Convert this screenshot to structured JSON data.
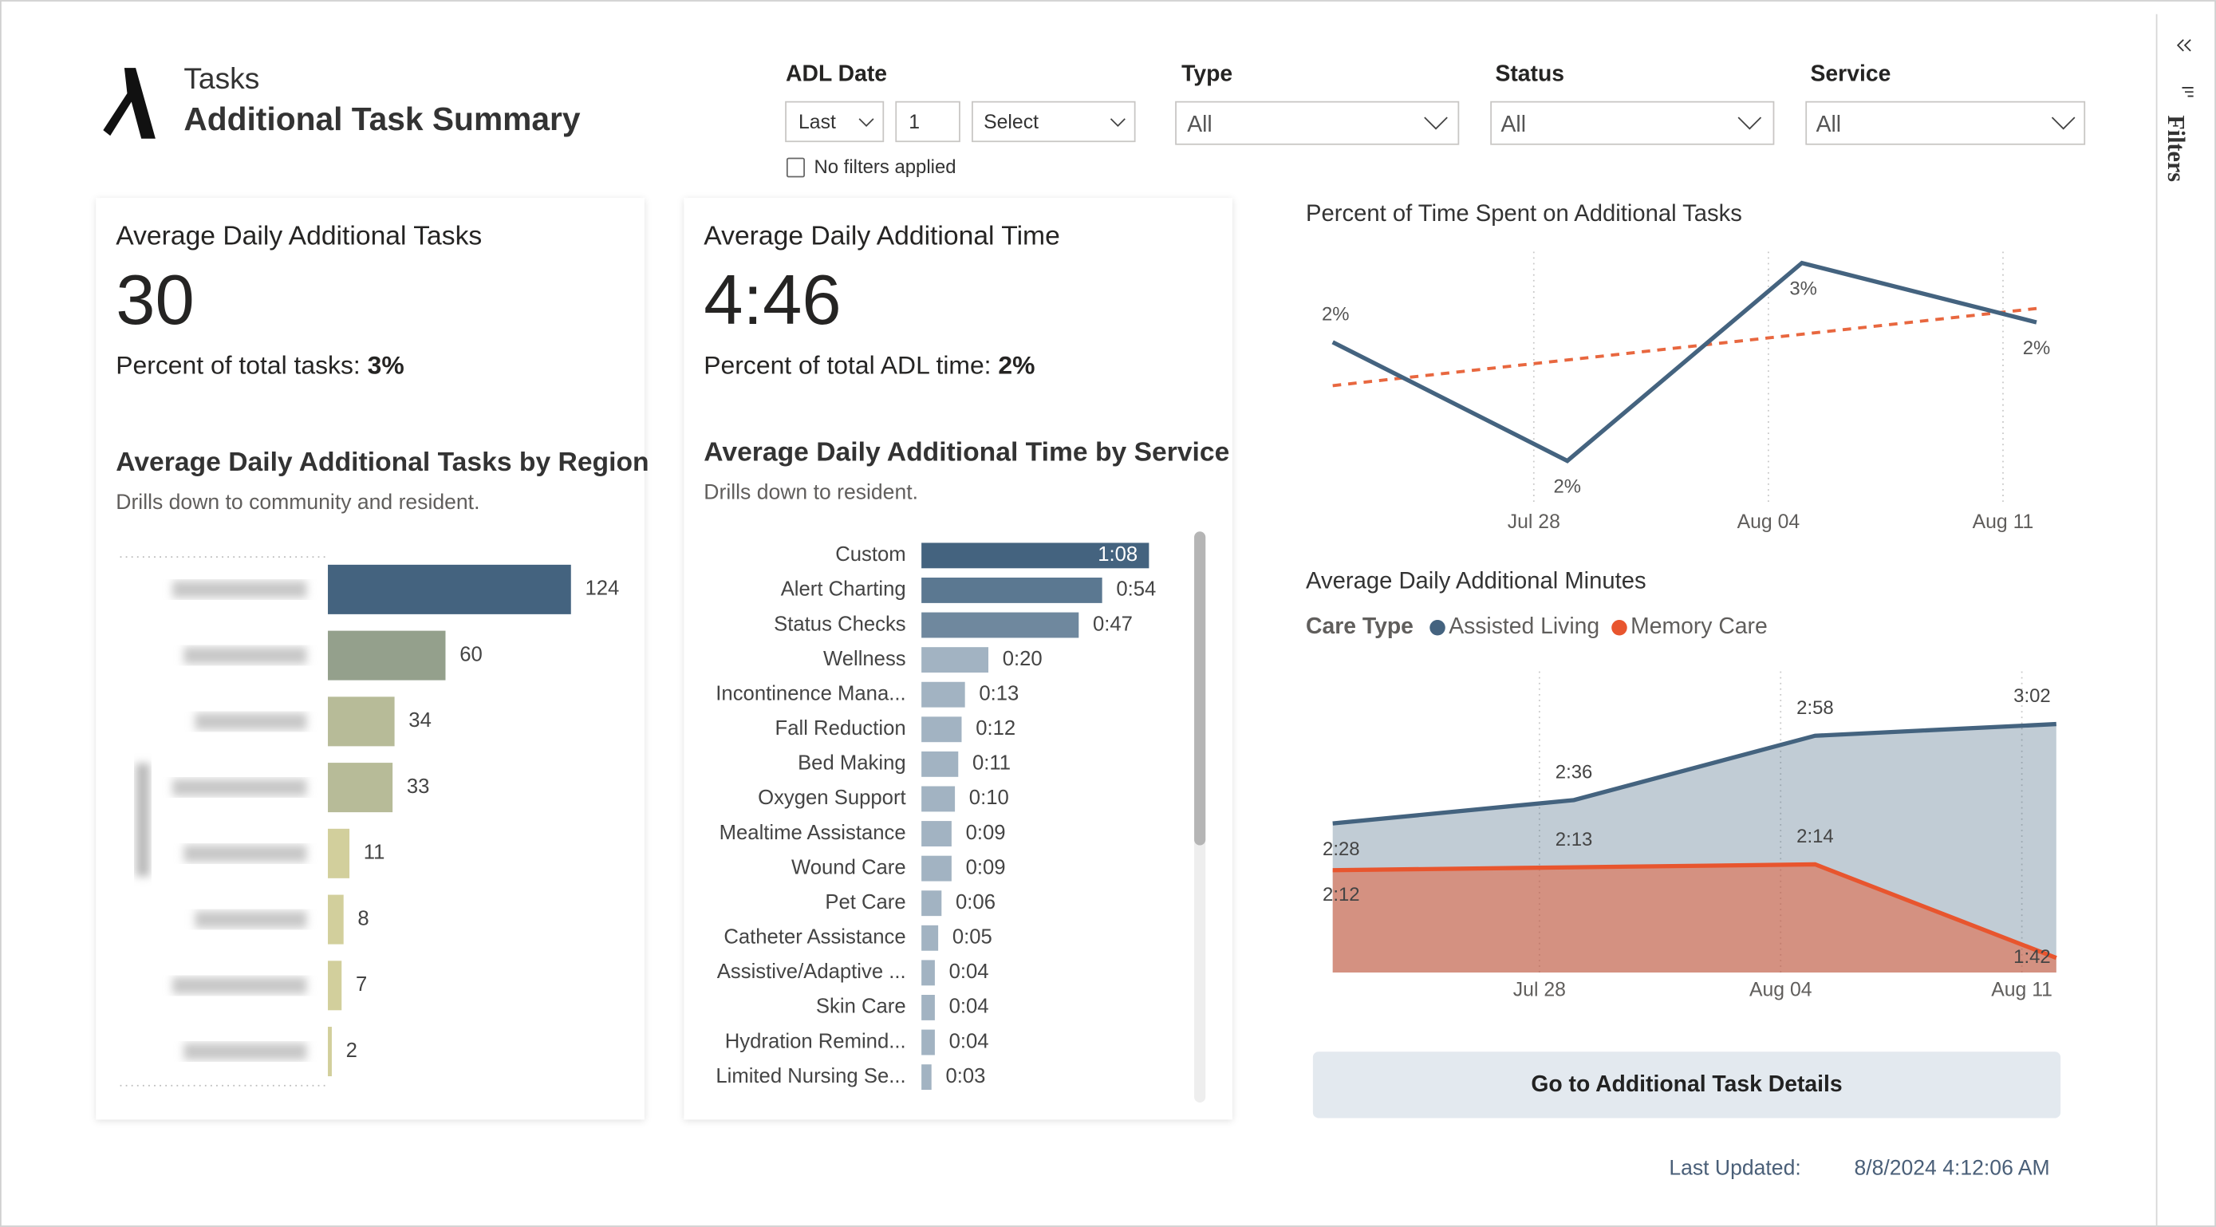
{
  "header": {
    "section": "Tasks",
    "title": "Additional Task Summary"
  },
  "filters": {
    "adl_date": {
      "label": "ADL Date",
      "period": "Last",
      "count": "1",
      "unit": "Select",
      "status": "No filters applied"
    },
    "type": {
      "label": "Type",
      "value": "All"
    },
    "status": {
      "label": "Status",
      "value": "All"
    },
    "service": {
      "label": "Service",
      "value": "All"
    },
    "pane": "Filters"
  },
  "cards": [
    {
      "title": "Average Daily Additional Tasks",
      "value": "30",
      "note": "Percent of total tasks:",
      "note_value": "3%"
    },
    {
      "title": "Average Daily Additional Time",
      "value": "4:46",
      "note": "Percent of total ADL time:",
      "note_value": "2%"
    }
  ],
  "chart_data": [
    {
      "type": "hbar",
      "title": "Average Daily Additional Tasks by Region",
      "subtitle": "Drills down to community and resident.",
      "categories": [
        null,
        null,
        null,
        null,
        null,
        null,
        null,
        null
      ],
      "values": [
        124,
        60,
        34,
        33,
        11,
        8,
        7,
        2
      ],
      "colors": [
        "#44637f",
        "#94a08c",
        "#b7bb98",
        "#b7bb98",
        "#d2cf9c",
        "#d2cf9c",
        "#d2cf9c",
        "#d2cf9c"
      ]
    },
    {
      "type": "hbar",
      "title": "Average Daily Additional Time by Service",
      "subtitle": "Drills down to resident.",
      "categories": [
        "Custom",
        "Alert Charting",
        "Status Checks",
        "Wellness",
        "Incontinence Mana...",
        "Fall Reduction",
        "Bed Making",
        "Oxygen Support",
        "Mealtime Assistance",
        "Wound Care",
        "Pet Care",
        "Catheter Assistance",
        "Assistive/Adaptive ...",
        "Skin Care",
        "Hydration Remind...",
        "Limited Nursing Se..."
      ],
      "values": [
        68,
        54,
        47,
        20,
        13,
        12,
        11,
        10,
        9,
        9,
        6,
        5,
        4,
        4,
        4,
        3
      ],
      "value_labels": [
        "1:08",
        "0:54",
        "0:47",
        "0:20",
        "0:13",
        "0:12",
        "0:11",
        "0:10",
        "0:09",
        "0:09",
        "0:06",
        "0:05",
        "0:04",
        "0:04",
        "0:04",
        "0:03"
      ],
      "colors": [
        "#44637f",
        "#5b7891",
        "#6f889e",
        "#a2b3c2",
        "#a2b3c2",
        "#a2b3c2",
        "#a2b3c2",
        "#a2b3c2",
        "#a2b3c2",
        "#a2b3c2",
        "#a2b3c2",
        "#a2b3c2",
        "#a2b3c2",
        "#a2b3c2",
        "#a2b3c2",
        "#a2b3c2"
      ]
    },
    {
      "type": "line",
      "title": "Percent of Time Spent on Additional Tasks",
      "x": [
        0,
        7,
        14,
        21
      ],
      "xlim": [
        0,
        21
      ],
      "xticks": [
        {
          "value": 6,
          "label": "Jul 28"
        },
        {
          "value": 13,
          "label": "Aug 04"
        },
        {
          "value": 20,
          "label": "Aug 11"
        }
      ],
      "ylim": [
        1.4,
        2.7
      ],
      "grid": true,
      "trend_line": true,
      "trend_color": "#e8673f",
      "series": [
        {
          "color": "#44637f",
          "values": [
            2.2,
            1.6,
            2.6,
            2.3
          ],
          "value_labels": [
            "2%",
            "2%",
            "3%",
            "2%"
          ]
        }
      ]
    },
    {
      "type": "area",
      "title": "Average Daily Additional Minutes",
      "legend_title": "Care Type",
      "x": [
        0,
        7,
        14,
        21
      ],
      "xlim": [
        0,
        21
      ],
      "xticks": [
        {
          "value": 6,
          "label": "Jul 28"
        },
        {
          "value": 13,
          "label": "Aug 04"
        },
        {
          "value": 20,
          "label": "Aug 11"
        }
      ],
      "ylim": [
        97,
        200
      ],
      "grid": true,
      "series": [
        {
          "name": "Assisted Living",
          "color": "#44637f",
          "values": [
            148,
            156,
            178,
            182
          ],
          "value_labels": [
            "2:28",
            "2:36",
            "2:58",
            "3:02"
          ]
        },
        {
          "name": "Memory Care",
          "color": "#e8552e",
          "values": [
            132,
            133,
            134,
            102
          ],
          "value_labels": [
            "2:12",
            "2:13",
            "2:14",
            "1:42"
          ]
        }
      ]
    }
  ],
  "button": "Go to Additional Task Details",
  "footer": {
    "label": "Last Updated:",
    "value": "8/8/2024 4:12:06 AM"
  }
}
